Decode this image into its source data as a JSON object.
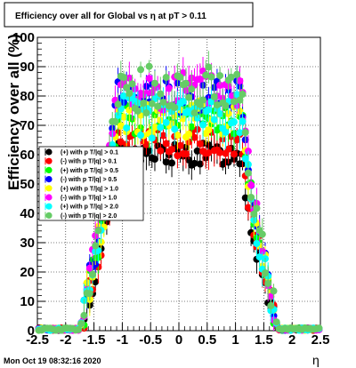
{
  "chart_data": {
    "type": "scatter",
    "title": "Efficiency over all for Global vs  η at pT > 0.11",
    "xlabel": "η",
    "ylabel": "Efficiency over all (%)",
    "xlim": [
      -2.5,
      2.5
    ],
    "ylim": [
      0,
      100
    ],
    "x_ticks": [
      "-2.5",
      "-2",
      "-1.5",
      "-1",
      "-0.5",
      "0",
      "0.5",
      "1",
      "1.5",
      "2",
      "2.5"
    ],
    "y_ticks": [
      "0",
      "10",
      "20",
      "30",
      "40",
      "50",
      "60",
      "70",
      "80",
      "90",
      "100"
    ],
    "grid": true,
    "legend_position": "left-middle",
    "series": [
      {
        "name": "(+) with p T/|q| > 0.1",
        "color": "#000000",
        "plateau": 60
      },
      {
        "name": "(-) with p T/|q| > 0.1",
        "color": "#ff0000",
        "plateau": 64
      },
      {
        "name": "(+) with p T/|q| > 0.5",
        "color": "#00ff00",
        "plateau": 72
      },
      {
        "name": "(-) with p T/|q| > 0.5",
        "color": "#0000ff",
        "plateau": 80
      },
      {
        "name": "(+) with p T/|q| > 1.0",
        "color": "#ffff00",
        "plateau": 72
      },
      {
        "name": "(-) with p T/|q| > 1.0",
        "color": "#ff00ff",
        "plateau": 82
      },
      {
        "name": "(+) with p T/|q| > 2.0",
        "color": "#00ffff",
        "plateau": 73
      },
      {
        "name": "(-) with p T/|q| > 2.0",
        "color": "#66cc66",
        "plateau": 82
      }
    ],
    "point_model": "per-series plateau across |η| < 1.1, steep turn-on near |η| = 1.25, near zero beyond |η| = 1.8"
  },
  "footer": {
    "timestamp": "Mon Oct 19 08:32:16 2020"
  }
}
